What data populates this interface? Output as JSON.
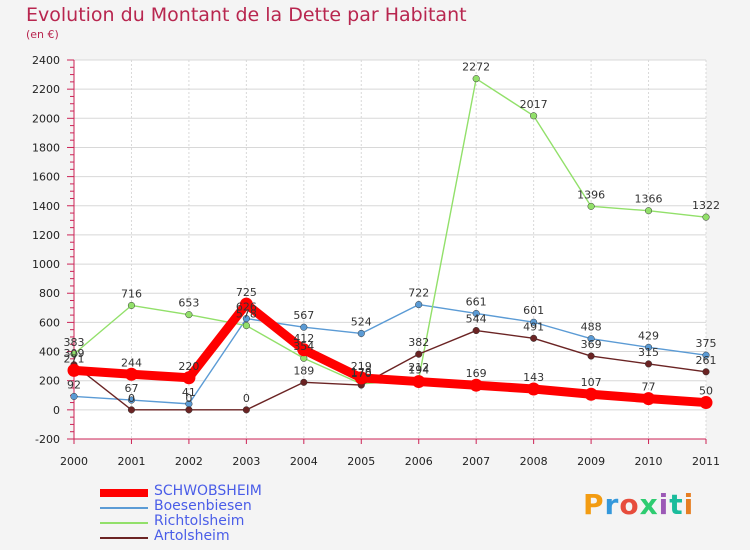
{
  "chart_data": {
    "type": "line",
    "title": "Evolution du Montant de la Dette par Habitant",
    "subtitle": "(en €)",
    "x": [
      "2000",
      "2001",
      "2002",
      "2003",
      "2004",
      "2005",
      "2006",
      "2007",
      "2008",
      "2009",
      "2010",
      "2011"
    ],
    "ylim": [
      -200,
      2400
    ],
    "yticks": [
      -200,
      0,
      200,
      400,
      600,
      800,
      1000,
      1200,
      1400,
      1600,
      1800,
      2000,
      2200,
      2400
    ],
    "grid": true,
    "legend": "bottom-left",
    "series": [
      {
        "name": "SCHWOBSHEIM",
        "color": "#ff0000",
        "values": [
          271,
          244,
          220,
          725,
          412,
          219,
          194,
          169,
          143,
          107,
          77,
          50
        ]
      },
      {
        "name": "Boesenbiesen",
        "color": "#5b9bd5",
        "values": [
          92,
          67,
          41,
          626,
          567,
          524,
          722,
          661,
          601,
          488,
          429,
          375
        ]
      },
      {
        "name": "Richtolsheim",
        "color": "#92e06a",
        "values": [
          383,
          716,
          653,
          578,
          354,
          178,
          212,
          2272,
          2017,
          1396,
          1366,
          1322
        ]
      },
      {
        "name": "Artolsheim",
        "color": "#6b2424",
        "values": [
          309,
          0,
          0,
          0,
          189,
          170,
          382,
          544,
          491,
          369,
          315,
          261
        ]
      }
    ]
  },
  "logo": {
    "text": "Proxiti",
    "colors": [
      "#f39c12",
      "#3498db",
      "#e74c3c",
      "#2ecc71",
      "#9b59b6",
      "#1abc9c",
      "#e67e22"
    ]
  }
}
